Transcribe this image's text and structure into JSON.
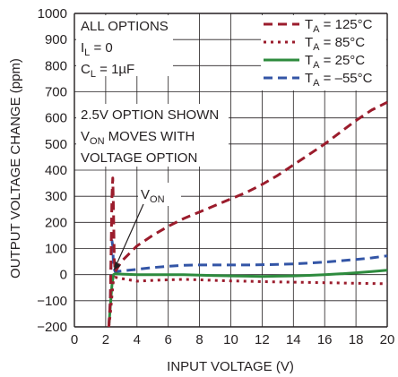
{
  "chart_data": {
    "type": "line",
    "xlabel": "INPUT VOLTAGE (V)",
    "ylabel": "OUTPUT VOLTAGE CHANGE (ppm)",
    "xlim": [
      0,
      20
    ],
    "ylim": [
      -200,
      1000
    ],
    "x_ticks": [
      "0",
      "2",
      "4",
      "6",
      "8",
      "10",
      "12",
      "14",
      "16",
      "18",
      "20"
    ],
    "y_ticks": [
      "−200",
      "−100",
      "0",
      "100",
      "200",
      "300",
      "400",
      "500",
      "600",
      "700",
      "800",
      "900",
      "1000"
    ],
    "grid": true,
    "legend_position": "top-right",
    "annotations": {
      "box1": [
        {
          "main": "ALL OPTIONS",
          "sub": ""
        },
        {
          "main": "I",
          "sub": "L",
          "rest": " = 0"
        },
        {
          "main": "C",
          "sub": "L",
          "rest": " = 1µF"
        }
      ],
      "box2": [
        {
          "main": "2.5V OPTION SHOWN"
        },
        {
          "main": "V",
          "sub": "ON",
          "rest": " MOVES WITH"
        },
        {
          "main": "VOLTAGE OPTION"
        }
      ],
      "von": {
        "main": "V",
        "sub": "ON"
      }
    },
    "series": [
      {
        "name": "T_A = 125°C",
        "label_main": "T",
        "label_sub": "A",
        "label_rest": " = 125°C",
        "color": "#9b1c2c",
        "dash": "10,6",
        "x": [
          2.2,
          2.3,
          2.35,
          2.4,
          2.45,
          2.5,
          2.55,
          2.6,
          2.7,
          3,
          3.5,
          4,
          5,
          6,
          7,
          8,
          9,
          10,
          11,
          12,
          13,
          14,
          15,
          16,
          17,
          18,
          19,
          20
        ],
        "y": [
          -200,
          -100,
          100,
          300,
          370,
          250,
          60,
          10,
          20,
          50,
          80,
          110,
          150,
          185,
          215,
          240,
          265,
          290,
          315,
          345,
          380,
          420,
          460,
          500,
          545,
          590,
          630,
          660
        ]
      },
      {
        "name": "T_A = 85°C",
        "label_main": "T",
        "label_sub": "A",
        "label_rest": " = 85°C",
        "color": "#9b1c2c",
        "dash": "3,5",
        "x": [
          2.2,
          2.3,
          2.4,
          2.5,
          2.6,
          3,
          4,
          5,
          6,
          7,
          8,
          9,
          10,
          11,
          12,
          13,
          14,
          15,
          16,
          17,
          18,
          19,
          20
        ],
        "y": [
          -200,
          -150,
          -80,
          -20,
          -10,
          -15,
          -25,
          -22,
          -20,
          -18,
          -20,
          -22,
          -24,
          -25,
          -27,
          -28,
          -29,
          -30,
          -31,
          -32,
          -33,
          -34,
          -35
        ]
      },
      {
        "name": "T_A = 25°C",
        "label_main": "T",
        "label_sub": "A",
        "label_rest": " = 25°C",
        "color": "#2e8b3e",
        "dash": "",
        "x": [
          2.2,
          2.3,
          2.4,
          2.5,
          2.6,
          3,
          4,
          5,
          6,
          7,
          8,
          9,
          10,
          11,
          12,
          13,
          14,
          15,
          16,
          17,
          18,
          19,
          20
        ],
        "y": [
          -200,
          -120,
          -40,
          0,
          3,
          2,
          0,
          0,
          0,
          0,
          -2,
          -4,
          -5,
          -6,
          -7,
          -6,
          -5,
          -3,
          0,
          3,
          7,
          12,
          17
        ]
      },
      {
        "name": "T_A = –55°C",
        "label_main": "T",
        "label_sub": "A",
        "label_rest": " = –55°C",
        "color": "#3355a6",
        "dash": "10,6",
        "x": [
          2.2,
          2.3,
          2.35,
          2.4,
          2.45,
          2.5,
          2.6,
          3,
          4,
          5,
          6,
          7,
          8,
          9,
          10,
          11,
          12,
          13,
          14,
          15,
          16,
          17,
          18,
          19,
          20
        ],
        "y": [
          -200,
          -100,
          50,
          130,
          110,
          30,
          12,
          14,
          20,
          27,
          32,
          36,
          37,
          37,
          37,
          37,
          38,
          39,
          41,
          44,
          48,
          53,
          58,
          64,
          72
        ]
      }
    ]
  }
}
